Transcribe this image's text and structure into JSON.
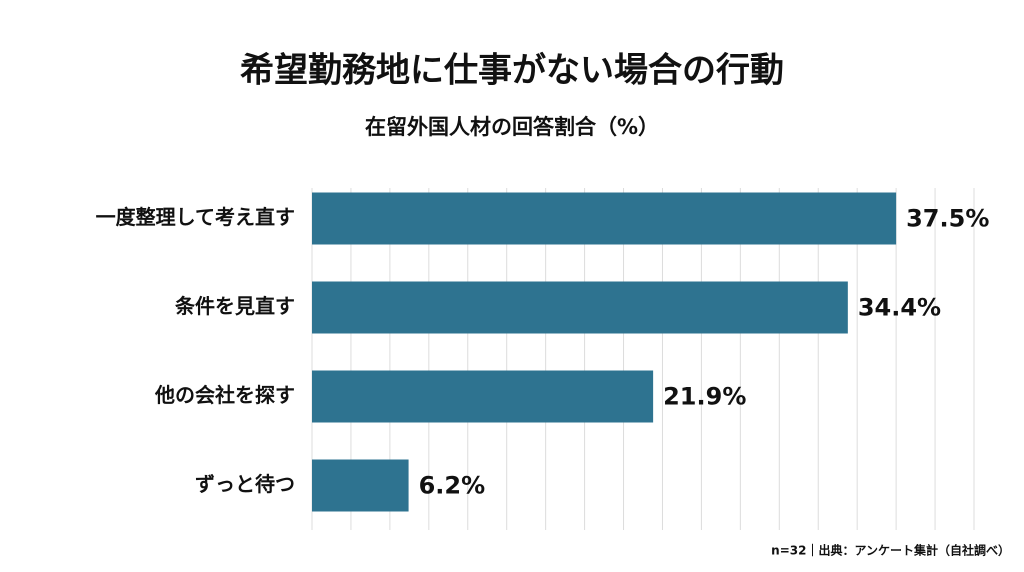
{
  "chart_data": {
    "type": "bar",
    "orientation": "horizontal",
    "title": "希望勤務地に仕事がない場合の行動",
    "subtitle": "在留外国人材の回答割合（%）",
    "categories": [
      "一度整理して考え直す",
      "条件を見直す",
      "他の会社を探す",
      "ずっと待つ"
    ],
    "values": [
      37.5,
      34.4,
      21.9,
      6.2
    ],
    "value_labels": [
      "37.5%",
      "34.4%",
      "21.9%",
      "6.2%"
    ],
    "color": "#2e7390",
    "xlim": [
      0,
      42.5
    ],
    "xticks": [
      0,
      2.5,
      5,
      7.5,
      10,
      12.5,
      15,
      17.5,
      20,
      22.5,
      25,
      27.5,
      30,
      32.5,
      35,
      37.5,
      40,
      42.5
    ],
    "grid": true,
    "note": "n=32｜出典：アンケート集計（自社調べ）"
  }
}
